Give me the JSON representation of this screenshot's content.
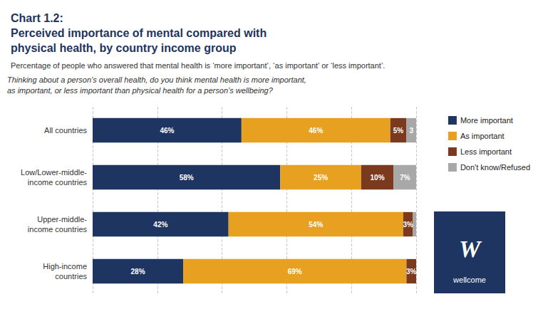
{
  "chart_data": {
    "type": "bar",
    "orientation": "horizontal",
    "stacked": true,
    "title": "Chart 1.2:\nPerceived importance of mental compared with\nphysical health, by country income group",
    "subtitle": "Percentage of people who answered that mental health is ‘more important’, ‘as important’ or ‘less important’.",
    "annotations": [
      "Thinking about a person’s overall health, do you think mental health is more important,\nas important, or less important than physical health for a person’s wellbeing?",
      "W",
      "wellcome"
    ],
    "categories": [
      "All countries",
      "Low/Lower-middle-\nincome countries",
      "Upper-middle-\nincome countries",
      "High-income\ncountries"
    ],
    "series": [
      {
        "name": "More important",
        "color": "#1e3461",
        "values": [
          46,
          58,
          42,
          28
        ],
        "value_labels": [
          "46%",
          "58%",
          "42%",
          "28%"
        ]
      },
      {
        "name": "As important",
        "color": "#e8a020",
        "values": [
          46,
          25,
          54,
          69
        ],
        "value_labels": [
          "46%",
          "25%",
          "54%",
          "69%"
        ]
      },
      {
        "name": "Less important",
        "color": "#7b3a1e",
        "values": [
          5,
          10,
          3,
          3
        ],
        "value_labels": [
          "5%",
          "10%",
          "3%",
          "3%"
        ]
      },
      {
        "name": "Don't know/Refused",
        "color": "#a8a8a8",
        "values": [
          3,
          7,
          1,
          0
        ],
        "value_labels": [
          "3",
          "7%",
          null,
          null
        ]
      }
    ],
    "xlim": [
      0,
      100
    ],
    "xticks": [
      0,
      20,
      40,
      60,
      80,
      100
    ],
    "grid": true,
    "tick_labels": "y",
    "data_labels": true,
    "legend": "right"
  }
}
